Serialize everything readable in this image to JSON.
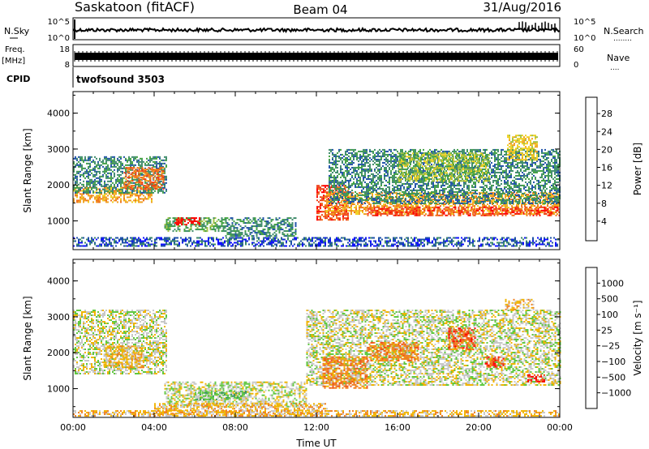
{
  "header": {
    "title": "Saskatoon (fitACF)",
    "beam": "Beam 04",
    "date": "31/Aug/2016"
  },
  "nsky_panel": {
    "left_label": "N.Sky",
    "left_ticks": [
      "10^5",
      "10^0"
    ],
    "right_ticks": [
      "10^5",
      "10^0"
    ],
    "right_label": "N.Search",
    "right_marker": "........"
  },
  "freq_panel": {
    "left_label_1": "Freq.",
    "left_label_2": "[MHz]",
    "left_ticks": [
      "18",
      "8"
    ],
    "right_ticks": [
      "60",
      "0"
    ],
    "right_label": "Nave",
    "right_marker": "...."
  },
  "cpid": {
    "label": "CPID",
    "value": "twofsound 3503"
  },
  "chart_data": [
    {
      "type": "heatmap",
      "name": "Power",
      "xlabel": "Time UT",
      "ylabel": "Slant Range [km]",
      "xlim": [
        0,
        24
      ],
      "ylim": [
        200,
        4600
      ],
      "x_ticks": [
        "00:00",
        "04:00",
        "08:00",
        "12:00",
        "16:00",
        "20:00",
        "00:00"
      ],
      "y_ticks": [
        1000,
        2000,
        3000,
        4000
      ],
      "colorbar": {
        "label": "Power [dB]",
        "ticks": [
          "4",
          "8",
          "12",
          "16",
          "20",
          "24",
          "28"
        ],
        "colors": [
          "#1010ff",
          "#1e50a8",
          "#3d8a6a",
          "#40a040",
          "#a0c040",
          "#f0d020",
          "#f0a020",
          "#f07018",
          "#f04018",
          "#ff0000"
        ]
      },
      "bands": [
        {
          "x": [
            0.0,
            3.9
          ],
          "range": [
            1500,
            1950
          ],
          "level": 6
        },
        {
          "x": [
            0.0,
            4.6
          ],
          "range": [
            1800,
            2800
          ],
          "level": 2
        },
        {
          "x": [
            2.5,
            4.5
          ],
          "range": [
            1900,
            2500
          ],
          "level": 7
        },
        {
          "x": [
            4.5,
            7.5
          ],
          "range": [
            700,
            1100
          ],
          "level": 3
        },
        {
          "x": [
            7.5,
            11.0
          ],
          "range": [
            600,
            1100
          ],
          "level": 2
        },
        {
          "x": [
            0.0,
            24.0
          ],
          "range": [
            300,
            550
          ],
          "level": 1
        },
        {
          "x": [
            5.0,
            6.2
          ],
          "range": [
            900,
            1100
          ],
          "level": 9
        },
        {
          "x": [
            12.0,
            13.6
          ],
          "range": [
            1050,
            2000
          ],
          "level": 8
        },
        {
          "x": [
            12.4,
            24.0
          ],
          "range": [
            1200,
            1800
          ],
          "level": 6
        },
        {
          "x": [
            14.5,
            24.0
          ],
          "range": [
            1150,
            1400
          ],
          "level": 8
        },
        {
          "x": [
            12.6,
            24.0
          ],
          "range": [
            1500,
            3000
          ],
          "level": 2
        },
        {
          "x": [
            16.0,
            20.5
          ],
          "range": [
            2100,
            2900
          ],
          "level": 4
        },
        {
          "x": [
            21.4,
            22.9
          ],
          "range": [
            2700,
            3400
          ],
          "level": 5
        }
      ]
    },
    {
      "type": "heatmap",
      "name": "Velocity",
      "xlabel": "Time UT",
      "ylabel": "Slant Range [km]",
      "xlim": [
        0,
        24
      ],
      "ylim": [
        200,
        4600
      ],
      "x_ticks": [
        "00:00",
        "04:00",
        "08:00",
        "12:00",
        "16:00",
        "20:00",
        "00:00"
      ],
      "y_ticks": [
        1000,
        2000,
        3000,
        4000
      ],
      "colorbar": {
        "label": "Velocity [m s⁻¹]",
        "ticks": [
          "1000",
          "500",
          "100",
          "25",
          "−25",
          "−100",
          "−500",
          "−1000"
        ],
        "colors": [
          "#1e3cc8",
          "#2d6eb0",
          "#3c9664",
          "#60c840",
          "#c8c8c8",
          "#f0b400",
          "#f08020",
          "#f05018",
          "#ff0000"
        ]
      },
      "bands": [
        {
          "x": [
            0.0,
            4.6
          ],
          "range": [
            1400,
            3200
          ],
          "level": 4
        },
        {
          "x": [
            1.5,
            3.5
          ],
          "range": [
            1600,
            2200
          ],
          "level": 5
        },
        {
          "x": [
            4.5,
            11.5
          ],
          "range": [
            500,
            1200
          ],
          "level": 4
        },
        {
          "x": [
            6.0,
            8.5
          ],
          "range": [
            700,
            950
          ],
          "level": 3
        },
        {
          "x": [
            4.0,
            12.5
          ],
          "range": [
            250,
            600
          ],
          "level": 5
        },
        {
          "x": [
            11.5,
            24.0
          ],
          "range": [
            1100,
            3200
          ],
          "level": 4
        },
        {
          "x": [
            12.3,
            14.5
          ],
          "range": [
            1000,
            1900
          ],
          "level": 6
        },
        {
          "x": [
            14.5,
            17.0
          ],
          "range": [
            1800,
            2300
          ],
          "level": 6
        },
        {
          "x": [
            18.5,
            19.8
          ],
          "range": [
            2100,
            2700
          ],
          "level": 7
        },
        {
          "x": [
            20.3,
            21.2
          ],
          "range": [
            1600,
            1900
          ],
          "level": 7
        },
        {
          "x": [
            21.3,
            22.7
          ],
          "range": [
            3200,
            3500
          ],
          "level": 5
        },
        {
          "x": [
            22.4,
            23.2
          ],
          "range": [
            1200,
            1400
          ],
          "level": 7
        },
        {
          "x": [
            0.0,
            24.0
          ],
          "range": [
            220,
            400
          ],
          "level": 5
        }
      ]
    }
  ]
}
